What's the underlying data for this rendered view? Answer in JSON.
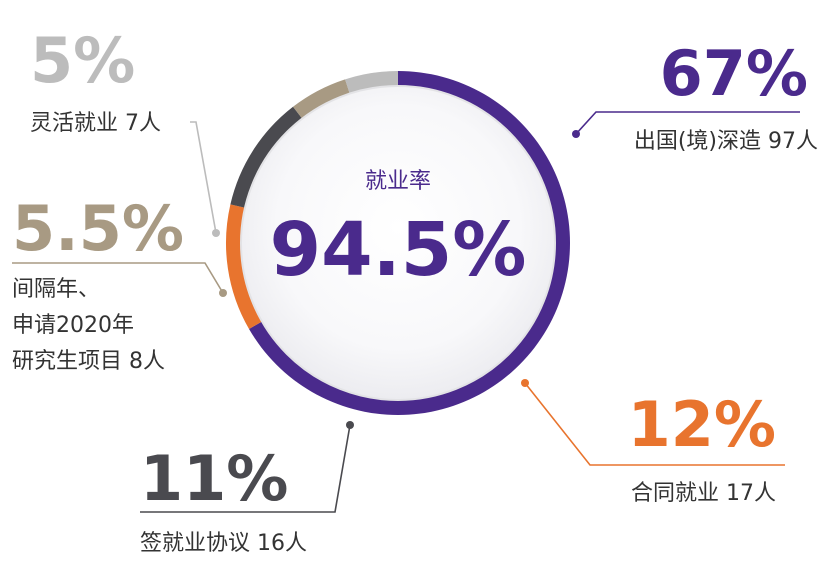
{
  "chart_data": {
    "type": "pie",
    "center_title": "就业率",
    "center_value": "94.5%",
    "slices": [
      {
        "name": "出国(境)深造",
        "value": 67,
        "display": "67%",
        "count": "97人",
        "color": "#4a2a8c"
      },
      {
        "name": "合同就业",
        "value": 12,
        "display": "12%",
        "count": "17人",
        "color": "#e8742e"
      },
      {
        "name": "签就业协议",
        "value": 11,
        "display": "11%",
        "count": "16人",
        "color": "#4a4a4f"
      },
      {
        "name": "间隔年、申请2020年研究生项目",
        "value": 5.5,
        "display": "5.5%",
        "count": "8人",
        "color": "#a89a83"
      },
      {
        "name": "灵活就业",
        "value": 5,
        "display": "5%",
        "count": "7人",
        "color": "#bcbcbc"
      }
    ]
  },
  "labels": {
    "slice0": {
      "pct": "67%",
      "line1": "出国(境)深造 97人"
    },
    "slice1": {
      "pct": "12%",
      "line1": "合同就业 17人"
    },
    "slice2": {
      "pct": "11%",
      "line1": "签就业协议 16人"
    },
    "slice3": {
      "pct": "5.5%",
      "line1": "间隔年、",
      "line2": "申请2020年",
      "line3": "研究生项目 8人"
    },
    "slice4": {
      "pct": "5%",
      "line1": "灵活就业 7人"
    }
  }
}
